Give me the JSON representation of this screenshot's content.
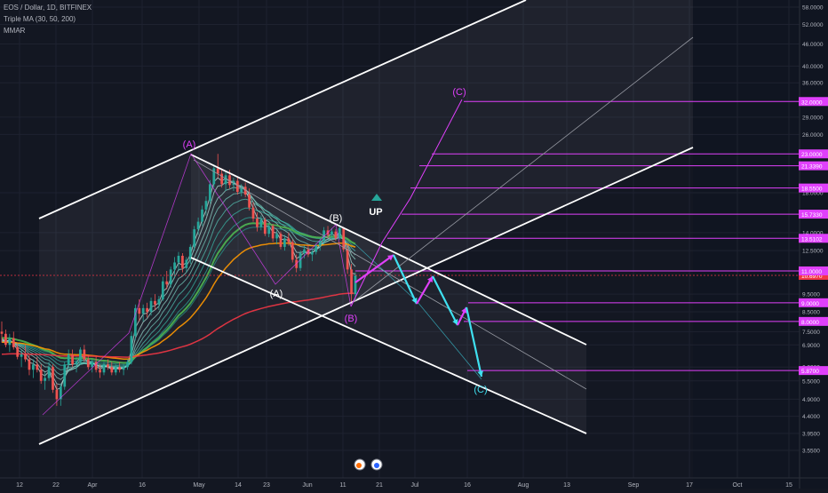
{
  "header": {
    "symbol_line": "EOS / Dollar, 1D, BITFINEX",
    "indicator_1": "Triple MA (30, 50, 200)",
    "indicator_2": "MMAR"
  },
  "annotations": {
    "up": "UP"
  },
  "colors": {
    "background": "#131722",
    "channel_line": "#ffffff",
    "wave_up": "#e040fb",
    "wave_down": "#3fe0f0",
    "level_line": "#e040fb",
    "price_badge": "#f23645",
    "candle_up": "#26a69a",
    "candle_down": "#ef5350"
  },
  "chart_data": {
    "type": "candlestick",
    "symbol": "EOS / Dollar",
    "interval": "1D",
    "exchange": "BITFINEX",
    "y_scale": "log",
    "ylim": [
      3.3,
      60
    ],
    "y_ticks": [
      {
        "label": "58.0000",
        "value": 58
      },
      {
        "label": "52.0000",
        "value": 52
      },
      {
        "label": "46.0000",
        "value": 46
      },
      {
        "label": "40.0000",
        "value": 40
      },
      {
        "label": "36.0000",
        "value": 36
      },
      {
        "label": "29.0000",
        "value": 29
      },
      {
        "label": "26.0000",
        "value": 26
      },
      {
        "label": "18.0000",
        "value": 18
      },
      {
        "label": "14.0000",
        "value": 14
      },
      {
        "label": "12.5000",
        "value": 12.5
      },
      {
        "label": "9.5000",
        "value": 9.5
      },
      {
        "label": "8.5000",
        "value": 8.5
      },
      {
        "label": "7.5000",
        "value": 7.5
      },
      {
        "label": "6.9000",
        "value": 6.9
      },
      {
        "label": "6.0000",
        "value": 6.0
      },
      {
        "label": "5.5000",
        "value": 5.5
      },
      {
        "label": "4.9000",
        "value": 4.9
      },
      {
        "label": "4.4000",
        "value": 4.4
      },
      {
        "label": "3.9500",
        "value": 3.95
      },
      {
        "label": "3.5500",
        "value": 3.55
      }
    ],
    "x_ticks": [
      "12",
      "22",
      "Apr",
      "16",
      "May",
      "14",
      "23",
      "Jun",
      "11",
      "21",
      "Jul",
      "16",
      "Aug",
      "13",
      "Sep",
      "17",
      "Oct",
      "15"
    ],
    "last_price": {
      "label": "10.6970",
      "value": 10.697
    },
    "levels": [
      {
        "label": "32.0000",
        "value": 32.0
      },
      {
        "label": "23.0000",
        "value": 23.0
      },
      {
        "label": "21.3390",
        "value": 21.339
      },
      {
        "label": "18.5500",
        "value": 18.55
      },
      {
        "label": "15.7330",
        "value": 15.733
      },
      {
        "label": "13.5102",
        "value": 13.5102
      },
      {
        "label": "11.0000",
        "value": 11.0
      },
      {
        "label": "9.0000",
        "value": 9.0
      },
      {
        "label": "8.0000",
        "value": 8.0
      },
      {
        "label": "5.8700",
        "value": 5.87
      }
    ],
    "wave_labels": [
      "(A)",
      "(B)",
      "(A)",
      "(B)",
      "(C)",
      "(C)"
    ],
    "moving_averages": [
      "30",
      "50",
      "200"
    ],
    "candles_ohlc": [
      [
        7.5,
        8.0,
        7.0,
        7.4
      ],
      [
        7.4,
        7.6,
        6.8,
        6.9
      ],
      [
        6.9,
        7.4,
        6.6,
        7.2
      ],
      [
        7.2,
        7.5,
        6.7,
        6.8
      ],
      [
        6.8,
        7.0,
        6.3,
        6.4
      ],
      [
        6.4,
        6.7,
        6.0,
        6.5
      ],
      [
        6.5,
        6.9,
        6.2,
        6.3
      ],
      [
        6.3,
        6.5,
        5.7,
        5.9
      ],
      [
        5.9,
        6.3,
        5.6,
        6.1
      ],
      [
        6.1,
        6.4,
        5.8,
        5.9
      ],
      [
        5.9,
        6.1,
        5.4,
        5.5
      ],
      [
        5.5,
        5.8,
        5.2,
        5.6
      ],
      [
        5.6,
        6.2,
        5.5,
        6.0
      ],
      [
        6.0,
        6.1,
        5.1,
        5.2
      ],
      [
        5.2,
        5.4,
        4.7,
        4.9
      ],
      [
        4.9,
        5.4,
        4.7,
        5.3
      ],
      [
        5.3,
        6.2,
        5.2,
        6.1
      ],
      [
        6.1,
        6.7,
        5.9,
        6.5
      ],
      [
        6.5,
        6.7,
        6.0,
        6.1
      ],
      [
        6.1,
        6.4,
        5.8,
        6.2
      ],
      [
        6.2,
        6.8,
        6.1,
        6.7
      ],
      [
        6.7,
        6.9,
        6.2,
        6.3
      ],
      [
        6.3,
        6.5,
        5.9,
        6.0
      ],
      [
        6.0,
        6.3,
        5.8,
        6.2
      ],
      [
        6.2,
        6.4,
        5.8,
        5.9
      ],
      [
        5.9,
        6.1,
        5.6,
        5.8
      ],
      [
        5.8,
        6.2,
        5.7,
        6.1
      ],
      [
        6.1,
        6.3,
        5.9,
        6.0
      ],
      [
        6.0,
        6.2,
        5.7,
        5.8
      ],
      [
        5.8,
        6.1,
        5.7,
        6.0
      ],
      [
        6.0,
        6.2,
        5.8,
        5.9
      ],
      [
        5.9,
        6.1,
        5.7,
        6.0
      ],
      [
        6.0,
        6.3,
        5.9,
        6.2
      ],
      [
        6.2,
        7.5,
        6.1,
        7.3
      ],
      [
        7.3,
        8.9,
        7.1,
        8.7
      ],
      [
        8.7,
        9.2,
        8.0,
        8.4
      ],
      [
        8.4,
        8.9,
        8.0,
        8.7
      ],
      [
        8.7,
        9.0,
        8.2,
        8.5
      ],
      [
        8.5,
        9.3,
        8.3,
        9.1
      ],
      [
        9.1,
        9.5,
        8.6,
        8.9
      ],
      [
        8.9,
        9.4,
        8.6,
        9.2
      ],
      [
        9.2,
        10.6,
        9.1,
        10.3
      ],
      [
        10.3,
        11.0,
        9.8,
        10.1
      ],
      [
        10.1,
        11.3,
        9.9,
        11.1
      ],
      [
        11.1,
        12.0,
        10.5,
        11.6
      ],
      [
        11.6,
        12.4,
        11.0,
        12.1
      ],
      [
        12.1,
        12.3,
        10.9,
        11.2
      ],
      [
        11.2,
        12.0,
        10.9,
        11.8
      ],
      [
        11.8,
        13.0,
        11.5,
        12.8
      ],
      [
        12.8,
        14.6,
        12.5,
        14.3
      ],
      [
        14.3,
        15.4,
        13.8,
        15.0
      ],
      [
        15.0,
        16.6,
        14.6,
        16.2
      ],
      [
        16.2,
        17.6,
        15.6,
        17.1
      ],
      [
        17.1,
        19.5,
        16.8,
        19.0
      ],
      [
        19.0,
        21.5,
        18.6,
        21.0
      ],
      [
        21.0,
        23.0,
        19.8,
        20.3
      ],
      [
        20.3,
        21.0,
        18.6,
        19.0
      ],
      [
        19.0,
        20.6,
        18.2,
        20.1
      ],
      [
        20.1,
        20.8,
        18.5,
        18.9
      ],
      [
        18.9,
        19.8,
        18.2,
        19.4
      ],
      [
        19.4,
        19.9,
        17.8,
        18.1
      ],
      [
        18.1,
        19.0,
        17.6,
        18.7
      ],
      [
        18.7,
        19.2,
        17.5,
        17.8
      ],
      [
        17.8,
        18.5,
        16.1,
        16.4
      ],
      [
        16.4,
        17.0,
        15.0,
        15.3
      ],
      [
        15.3,
        15.9,
        14.1,
        14.5
      ],
      [
        14.5,
        15.6,
        14.2,
        15.2
      ],
      [
        15.2,
        15.4,
        13.7,
        13.9
      ],
      [
        13.9,
        14.9,
        13.6,
        14.6
      ],
      [
        14.6,
        14.8,
        13.2,
        13.5
      ],
      [
        13.5,
        14.2,
        13.0,
        13.9
      ],
      [
        13.9,
        14.1,
        12.6,
        12.8
      ],
      [
        12.8,
        13.8,
        12.5,
        13.5
      ],
      [
        13.5,
        14.0,
        12.9,
        13.2
      ],
      [
        13.2,
        13.4,
        11.6,
        11.8
      ],
      [
        11.8,
        12.2,
        10.9,
        11.2
      ],
      [
        11.2,
        12.5,
        11.0,
        12.3
      ],
      [
        12.3,
        12.9,
        11.9,
        12.6
      ],
      [
        12.6,
        13.0,
        12.0,
        12.2
      ],
      [
        12.2,
        12.6,
        11.7,
        12.4
      ],
      [
        12.4,
        13.1,
        12.2,
        12.9
      ],
      [
        12.9,
        13.5,
        12.5,
        13.3
      ],
      [
        13.3,
        14.5,
        13.0,
        14.2
      ],
      [
        14.2,
        14.6,
        13.5,
        13.8
      ],
      [
        13.8,
        14.4,
        13.4,
        14.1
      ],
      [
        14.1,
        14.3,
        13.3,
        13.5
      ],
      [
        13.5,
        14.7,
        13.4,
        14.4
      ],
      [
        14.4,
        14.5,
        12.4,
        12.6
      ],
      [
        12.6,
        13.0,
        10.8,
        11.1
      ],
      [
        11.1,
        11.5,
        9.0,
        9.5
      ],
      [
        9.5,
        10.9,
        9.2,
        10.7
      ]
    ]
  }
}
